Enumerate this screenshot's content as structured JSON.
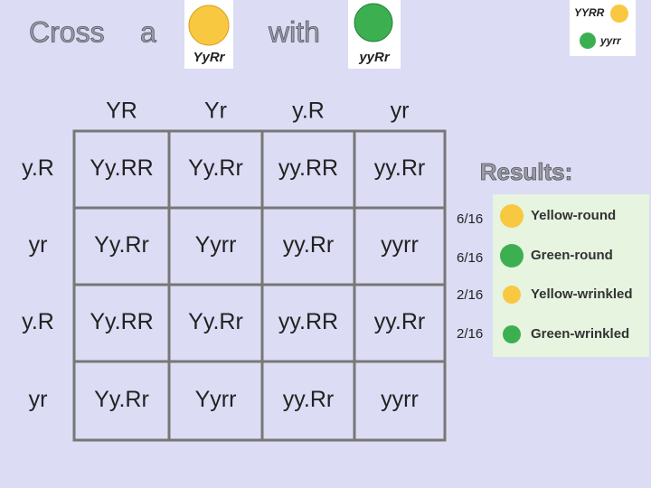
{
  "title": {
    "word1": "Cross",
    "word2": "a",
    "word3": "with",
    "parent1": "YyRr",
    "parent2": "yyRr"
  },
  "key": {
    "top": "YYRR",
    "bottom": "yyrr"
  },
  "punnett": {
    "columns": [
      "YR",
      "Yr",
      "y.R",
      "yr"
    ],
    "rows": [
      "y.R",
      "yr",
      "y.R",
      "yr"
    ],
    "cells": [
      [
        "Yy.RR",
        "Yy.Rr",
        "yy.RR",
        "yy.Rr"
      ],
      [
        "Yy.Rr",
        "Yyrr",
        "yy.Rr",
        "yyrr"
      ],
      [
        "Yy.RR",
        "Yy.Rr",
        "yy.RR",
        "yy.Rr"
      ],
      [
        "Yy.Rr",
        "Yyrr",
        "yy.Rr",
        "yyrr"
      ]
    ]
  },
  "results": {
    "label": "Results:",
    "items": [
      {
        "fraction": "6/16",
        "phenotype": "Yellow-round"
      },
      {
        "fraction": "6/16",
        "phenotype": "Green-round"
      },
      {
        "fraction": "2/16",
        "phenotype": "Yellow-wrinkled"
      },
      {
        "fraction": "2/16",
        "phenotype": "Green-wrinkled"
      }
    ]
  }
}
